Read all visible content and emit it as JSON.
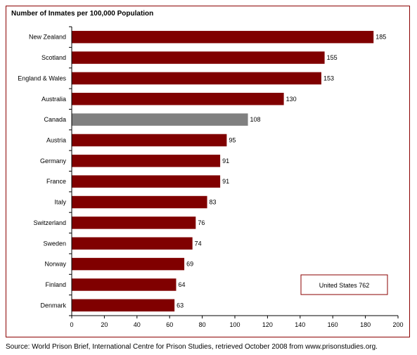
{
  "chart_data": {
    "type": "bar",
    "orientation": "horizontal",
    "title": "Number of Inmates per 100,000 Population",
    "categories": [
      "New Zealand",
      "Scotland",
      "England & Wales",
      "Australia",
      "Canada",
      "Austria",
      "Germany",
      "France",
      "Italy",
      "Switzerland",
      "Sweden",
      "Norway",
      "Finland",
      "Denmark"
    ],
    "values": [
      185,
      155,
      153,
      130,
      108,
      95,
      91,
      91,
      83,
      76,
      74,
      69,
      64,
      63
    ],
    "highlight_category": "Canada",
    "xlim": [
      0,
      200
    ],
    "xticks": [
      0,
      20,
      40,
      60,
      80,
      100,
      120,
      140,
      160,
      180,
      200
    ],
    "annotation": "United States  762",
    "grid": false,
    "colors": {
      "bar": "#800000",
      "highlight": "#808080",
      "border": "#8b0000",
      "axis": "#000000"
    }
  },
  "footer": {
    "source": "Source:  World Prison Brief, International Centre for Prison Studies, retrieved October 2008 from www.prisonstudies.org."
  }
}
